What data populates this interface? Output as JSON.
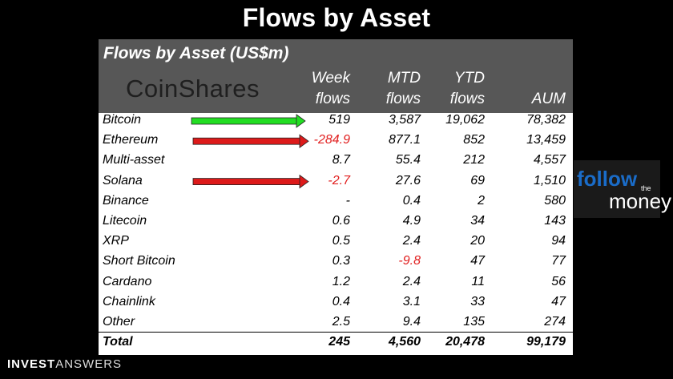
{
  "title": "Flows by Asset",
  "footer": {
    "brand_bold": "INVEST",
    "brand_light": "ANSWERS"
  },
  "side_logo": {
    "word1": "follow",
    "word2": "the",
    "word3": "money"
  },
  "colors": {
    "negative": "#e12020",
    "positive_arrow": "#22dd22",
    "negative_arrow": "#dd1a1a",
    "header_bg": "#575757"
  },
  "chart_data": {
    "type": "table",
    "title": "Flows by Asset (US$m)",
    "logo_text": "CoinShares",
    "columns": [
      {
        "line1": "Week",
        "line2": "flows"
      },
      {
        "line1": "MTD",
        "line2": "flows"
      },
      {
        "line1": "YTD",
        "line2": "flows"
      },
      {
        "line1": "",
        "line2": "AUM"
      }
    ],
    "rows": [
      {
        "asset": "Bitcoin",
        "week": "519",
        "mtd": "3,587",
        "ytd": "19,062",
        "aum": "78,382",
        "arrow": "up"
      },
      {
        "asset": "Ethereum",
        "week": "-284.9",
        "mtd": "877.1",
        "ytd": "852",
        "aum": "13,459",
        "arrow": "down"
      },
      {
        "asset": "Multi-asset",
        "week": "8.7",
        "mtd": "55.4",
        "ytd": "212",
        "aum": "4,557"
      },
      {
        "asset": "Solana",
        "week": "-2.7",
        "mtd": "27.6",
        "ytd": "69",
        "aum": "1,510",
        "arrow": "down"
      },
      {
        "asset": "Binance",
        "week": "-",
        "mtd": "0.4",
        "ytd": "2",
        "aum": "580"
      },
      {
        "asset": "Litecoin",
        "week": "0.6",
        "mtd": "4.9",
        "ytd": "34",
        "aum": "143"
      },
      {
        "asset": "XRP",
        "week": "0.5",
        "mtd": "2.4",
        "ytd": "20",
        "aum": "94"
      },
      {
        "asset": "Short Bitcoin",
        "week": "0.3",
        "mtd": "-9.8",
        "ytd": "47",
        "aum": "77"
      },
      {
        "asset": "Cardano",
        "week": "1.2",
        "mtd": "2.4",
        "ytd": "11",
        "aum": "56"
      },
      {
        "asset": "Chainlink",
        "week": "0.4",
        "mtd": "3.1",
        "ytd": "33",
        "aum": "47"
      },
      {
        "asset": "Other",
        "week": "2.5",
        "mtd": "9.4",
        "ytd": "135",
        "aum": "274"
      }
    ],
    "total": {
      "asset": "Total",
      "week": "245",
      "mtd": "4,560",
      "ytd": "20,478",
      "aum": "99,179"
    }
  }
}
